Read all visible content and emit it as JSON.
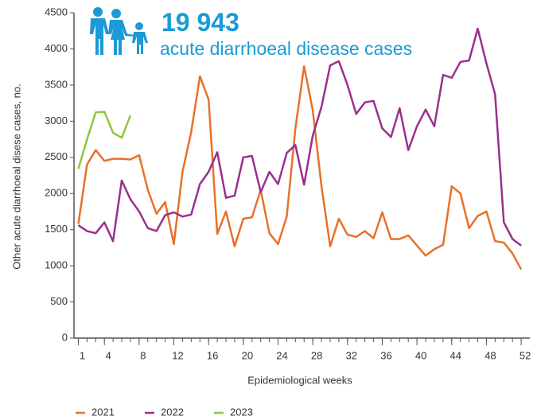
{
  "chart_data": {
    "type": "line",
    "headline_value": "19 943",
    "headline_text": "acute diarrhoeal disease cases",
    "y_label": "Other acute diarrhoeal disese cases, no.",
    "x_label": "Epidemiological weeks",
    "x": [
      1,
      2,
      3,
      4,
      5,
      6,
      7,
      8,
      9,
      10,
      11,
      12,
      13,
      14,
      15,
      16,
      17,
      18,
      19,
      20,
      21,
      22,
      23,
      24,
      25,
      26,
      27,
      28,
      29,
      30,
      31,
      32,
      33,
      34,
      35,
      36,
      37,
      38,
      39,
      40,
      41,
      42,
      43,
      44,
      45,
      46,
      47,
      48,
      49,
      50,
      51,
      52
    ],
    "xlim": [
      0.5,
      53
    ],
    "xticks": [
      1,
      4,
      8,
      12,
      16,
      20,
      24,
      28,
      32,
      36,
      40,
      44,
      48,
      52
    ],
    "ylim": [
      0,
      4500
    ],
    "yticks": [
      0,
      500,
      1000,
      1500,
      2000,
      2500,
      3000,
      3500,
      4000,
      4500
    ],
    "grid": false,
    "legend": "bottom-left",
    "series": [
      {
        "name": "2021",
        "color": "#e8702a",
        "values": [
          1580,
          2400,
          2600,
          2450,
          2480,
          2480,
          2470,
          2530,
          2050,
          1720,
          1880,
          1300,
          2300,
          2850,
          3620,
          3300,
          1440,
          1750,
          1270,
          1650,
          1670,
          2050,
          1450,
          1300,
          1680,
          2900,
          3760,
          3150,
          2100,
          1270,
          1650,
          1430,
          1400,
          1480,
          1380,
          1740,
          1370,
          1370,
          1420,
          1280,
          1140,
          1230,
          1290,
          2100,
          2000,
          1520,
          1690,
          1750,
          1340,
          1320,
          1170,
          950
        ]
      },
      {
        "name": "2022",
        "color": "#9b2f8e",
        "values": [
          1560,
          1480,
          1450,
          1600,
          1340,
          2180,
          1920,
          1750,
          1520,
          1480,
          1700,
          1740,
          1680,
          1710,
          2130,
          2300,
          2570,
          1940,
          1970,
          2500,
          2520,
          2020,
          2300,
          2130,
          2560,
          2670,
          2120,
          2800,
          3200,
          3770,
          3830,
          3500,
          3100,
          3260,
          3280,
          2900,
          2780,
          3180,
          2600,
          2930,
          3160,
          2930,
          3640,
          3600,
          3820,
          3840,
          4280,
          3800,
          3370,
          1600,
          1370,
          1280
        ]
      },
      {
        "name": "2023",
        "color": "#8dc63f",
        "values": [
          2340,
          2750,
          3120,
          3130,
          2840,
          2770,
          3080,
          null,
          null,
          null,
          null,
          null,
          null,
          null,
          null,
          null,
          null,
          null,
          null,
          null,
          null,
          null,
          null,
          null,
          null,
          null,
          null,
          null,
          null,
          null,
          null,
          null,
          null,
          null,
          null,
          null,
          null,
          null,
          null,
          null,
          null,
          null,
          null,
          null,
          null,
          null,
          null,
          null,
          null,
          null,
          null,
          null
        ]
      }
    ]
  }
}
